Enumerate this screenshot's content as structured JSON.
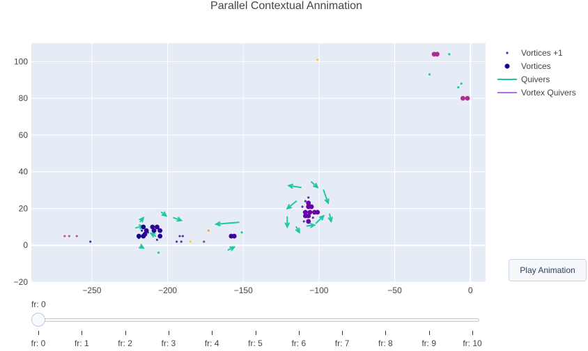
{
  "chart_data": {
    "type": "scatter",
    "title": "Parallel Contextual Annimation",
    "xlim": [
      -290,
      10
    ],
    "ylim": [
      -20,
      110
    ],
    "x_ticks": [
      -250,
      -200,
      -150,
      -100,
      -50,
      0
    ],
    "y_ticks": [
      -20,
      0,
      20,
      40,
      60,
      80,
      100
    ],
    "grid": true,
    "legend_position": "top-right",
    "legend": [
      "Vortices +1",
      "Vortices",
      "Quivers",
      "Vortex Quivers"
    ],
    "series": [
      {
        "name": "Vortices +1",
        "mode": "markers-small",
        "points": [
          {
            "x": -268,
            "y": 5,
            "c": "#b5578f"
          },
          {
            "x": -265,
            "y": 5,
            "c": "#b5578f"
          },
          {
            "x": -260,
            "y": 5,
            "c": "#b5578f"
          },
          {
            "x": -251,
            "y": 2,
            "c": "#3c35a0"
          },
          {
            "x": -219,
            "y": 4,
            "c": "#3a2c9c"
          },
          {
            "x": -217,
            "y": 8,
            "c": "#3a2c9c"
          },
          {
            "x": -213,
            "y": 7,
            "c": "#5b30a8"
          },
          {
            "x": -207,
            "y": 3,
            "c": "#5b30a8"
          },
          {
            "x": -206,
            "y": 9,
            "c": "#3a2c9c"
          },
          {
            "x": -194,
            "y": 2,
            "c": "#5b30a8"
          },
          {
            "x": -192,
            "y": 5,
            "c": "#5b30a8"
          },
          {
            "x": -191,
            "y": 2,
            "c": "#5b30a8"
          },
          {
            "x": -190,
            "y": 5,
            "c": "#5b30a8"
          },
          {
            "x": -185,
            "y": 2,
            "c": "#e8d13a"
          },
          {
            "x": -176,
            "y": 2,
            "c": "#9b3aa8"
          },
          {
            "x": -173,
            "y": 8,
            "c": "#f2a33a"
          },
          {
            "x": -111,
            "y": 21,
            "c": "#6a2fa8"
          },
          {
            "x": -110,
            "y": 18,
            "c": "#6a2fa8"
          },
          {
            "x": -109,
            "y": 24,
            "c": "#6a2fa8"
          },
          {
            "x": -107,
            "y": 26,
            "c": "#6a2fa8"
          },
          {
            "x": -110,
            "y": 13,
            "c": "#6a2fa8"
          },
          {
            "x": -104,
            "y": 15,
            "c": "#6a2fa8"
          },
          {
            "x": -101,
            "y": 101,
            "c": "#f2c84a"
          },
          {
            "x": -27,
            "y": 93,
            "c": "#1fc7a0"
          },
          {
            "x": -14,
            "y": 104,
            "c": "#1fc7a0"
          },
          {
            "x": -8,
            "y": 86,
            "c": "#1fc7a0"
          },
          {
            "x": -6,
            "y": 88,
            "c": "#1fc7a0"
          },
          {
            "x": -151,
            "y": 7,
            "c": "#1fc7a0"
          },
          {
            "x": -206,
            "y": -4,
            "c": "#1fc7a0"
          }
        ]
      },
      {
        "name": "Vortices",
        "mode": "markers-large",
        "points": [
          {
            "x": -216,
            "y": 10,
            "c": "#0d0887"
          },
          {
            "x": -219,
            "y": 5,
            "c": "#0d0887"
          },
          {
            "x": -216,
            "y": 5,
            "c": "#0d0887"
          },
          {
            "x": -214,
            "y": 8,
            "c": "#2b0594"
          },
          {
            "x": -210,
            "y": 10,
            "c": "#2b0594"
          },
          {
            "x": -207,
            "y": 10,
            "c": "#2b0594"
          },
          {
            "x": -205,
            "y": 8,
            "c": "#2b0594"
          },
          {
            "x": -209,
            "y": 8,
            "c": "#2b0594"
          },
          {
            "x": -205,
            "y": 5,
            "c": "#2b0594"
          },
          {
            "x": -215,
            "y": 6,
            "c": "#2b0594"
          },
          {
            "x": -158,
            "y": 5,
            "c": "#3c049b"
          },
          {
            "x": -156,
            "y": 5,
            "c": "#3c049b"
          },
          {
            "x": -107,
            "y": 23,
            "c": "#6a00a8"
          },
          {
            "x": -107,
            "y": 21,
            "c": "#6a00a8"
          },
          {
            "x": -105,
            "y": 21,
            "c": "#6a00a8"
          },
          {
            "x": -109,
            "y": 18,
            "c": "#6a00a8"
          },
          {
            "x": -106,
            "y": 18,
            "c": "#6a00a8"
          },
          {
            "x": -103,
            "y": 18,
            "c": "#6a00a8"
          },
          {
            "x": -101,
            "y": 18,
            "c": "#6a00a8"
          },
          {
            "x": -109,
            "y": 16,
            "c": "#6a00a8"
          },
          {
            "x": -107,
            "y": 16,
            "c": "#6a00a8"
          },
          {
            "x": -107,
            "y": 13,
            "c": "#6a00a8"
          },
          {
            "x": -24,
            "y": 104,
            "c": "#b12a90"
          },
          {
            "x": -22,
            "y": 104,
            "c": "#b12a90"
          },
          {
            "x": -5,
            "y": 80,
            "c": "#b12a90"
          },
          {
            "x": -2,
            "y": 80,
            "c": "#b12a90"
          }
        ]
      }
    ],
    "quivers": {
      "name": "Quivers",
      "color": "#1fc7a0",
      "arrows": [
        {
          "x0": -221,
          "y0": 9.5,
          "x1": -216,
          "y1": 10.5
        },
        {
          "x0": -218,
          "y0": 13,
          "x1": -216,
          "y1": 15
        },
        {
          "x0": -204,
          "y0": 18,
          "x1": -201,
          "y1": 16
        },
        {
          "x0": -196,
          "y0": 15,
          "x1": -191,
          "y1": 13.5
        },
        {
          "x0": -208,
          "y0": 5,
          "x1": -211,
          "y1": 6.5
        },
        {
          "x0": -218,
          "y0": -0.5,
          "x1": -216,
          "y1": -1.5
        },
        {
          "x0": -153,
          "y0": 12.5,
          "x1": -168,
          "y1": 11.5
        },
        {
          "x0": -160,
          "y0": -2.5,
          "x1": -156,
          "y1": -1
        },
        {
          "x0": -112,
          "y0": 31.5,
          "x1": -120,
          "y1": 32.5
        },
        {
          "x0": -105,
          "y0": 34.5,
          "x1": -101,
          "y1": 31.5
        },
        {
          "x0": -97,
          "y0": 30,
          "x1": -94,
          "y1": 23
        },
        {
          "x0": -115,
          "y0": 24,
          "x1": -121,
          "y1": 20
        },
        {
          "x0": -121,
          "y0": 15.5,
          "x1": -121,
          "y1": 10
        },
        {
          "x0": -115,
          "y0": 10,
          "x1": -113,
          "y1": 7
        },
        {
          "x0": -108,
          "y0": 10.5,
          "x1": -103,
          "y1": 11
        },
        {
          "x0": -102,
          "y0": 12,
          "x1": -97,
          "y1": 16
        },
        {
          "x0": -93,
          "y0": 17,
          "x1": -92,
          "y1": 13
        }
      ]
    },
    "vortex_quivers": {
      "name": "Vortex Quivers",
      "color": "#b16be8"
    }
  },
  "slider": {
    "current_label": "fr: 0",
    "steps": [
      "fr: 0",
      "fr: 1",
      "fr: 2",
      "fr: 3",
      "fr: 4",
      "fr: 5",
      "fr: 6",
      "fr: 7",
      "fr: 8",
      "fr: 9",
      "fr: 10"
    ]
  },
  "controls": {
    "play_label": "Play Animation"
  }
}
